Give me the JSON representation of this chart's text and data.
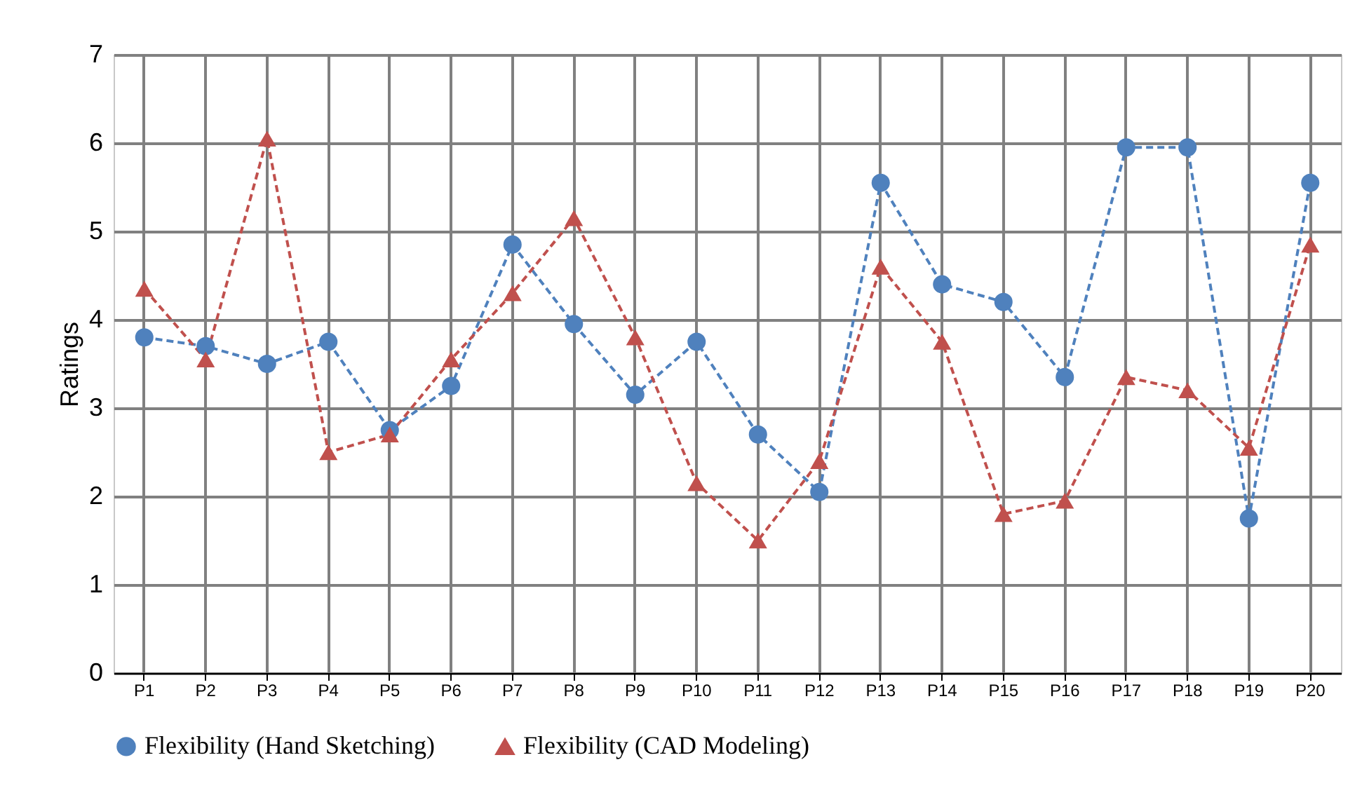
{
  "chart_data": {
    "type": "line",
    "ylabel": "Ratings",
    "categories": [
      "P1",
      "P2",
      "P3",
      "P4",
      "P5",
      "P6",
      "P7",
      "P8",
      "P9",
      "P10",
      "P11",
      "P12",
      "P13",
      "P14",
      "P15",
      "P16",
      "P17",
      "P18",
      "P19",
      "P20"
    ],
    "series": [
      {
        "name": "Flexibility (Hand Sketching)",
        "color": "#4f81bd",
        "marker": "circle",
        "values": [
          3.8,
          3.7,
          3.5,
          3.75,
          2.75,
          3.25,
          4.85,
          3.95,
          3.15,
          3.75,
          2.7,
          2.05,
          5.55,
          4.4,
          4.2,
          3.35,
          5.95,
          5.95,
          1.75,
          5.55
        ]
      },
      {
        "name": "Flexibility (CAD Modeling)",
        "color": "#c0504d",
        "marker": "triangle",
        "values": [
          4.35,
          3.55,
          6.05,
          2.5,
          2.7,
          3.55,
          4.3,
          5.15,
          3.8,
          2.15,
          1.5,
          2.4,
          4.6,
          3.75,
          1.8,
          1.95,
          3.35,
          3.2,
          2.55,
          4.85
        ]
      }
    ],
    "ylim": [
      0,
      7
    ],
    "yticks": [
      0,
      1,
      2,
      3,
      4,
      5,
      6,
      7
    ],
    "grid": true,
    "legend": "bottom",
    "line_style": "dashed"
  }
}
